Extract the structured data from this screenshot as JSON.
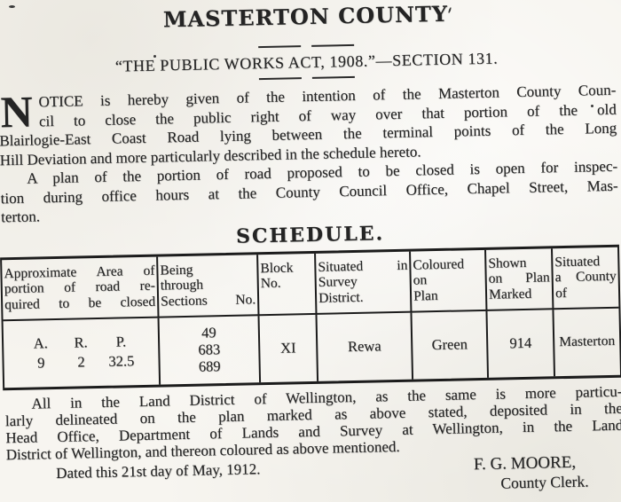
{
  "doc": {
    "title": "MASTERTON COUNTY",
    "subtitle": "“THE PUBLIC WORKS ACT, 1908.”—SECTION 131.",
    "paragraph1": {
      "dropcap": "N",
      "lines": [
        "OTICE is hereby given of the intention of the Masterton County Coun-",
        "cil to close the public right of way over that portion of the old",
        "Blairlogie-East Coast Road lying between the terminal points of the Long",
        "Hill Deviation and more particularly described in the schedule hereto."
      ]
    },
    "paragraph2": {
      "lines": [
        "A plan of the portion of road proposed to be closed is open for inspec-",
        "tion during office hours at the County Council Office, Chapel Street, Mas-",
        "terton."
      ]
    },
    "schedule_heading": "SCHEDULE.",
    "table": {
      "headers": [
        {
          "lines": [
            "Approximate Area of",
            "portion of road re-",
            "quired to be closed"
          ]
        },
        {
          "lines": [
            "Being",
            "through",
            "Sections No."
          ]
        },
        {
          "lines": [
            "Block",
            "No."
          ]
        },
        {
          "lines": [
            "Situated in",
            "Survey",
            "District."
          ]
        },
        {
          "lines": [
            "Coloured",
            "on",
            "Plan"
          ]
        },
        {
          "lines": [
            "Shown",
            "on Plan",
            "Marked"
          ]
        },
        {
          "lines": [
            "Situated",
            "a County",
            "of"
          ]
        }
      ],
      "row": {
        "area_units": [
          "A.",
          "R.",
          "P."
        ],
        "area_values": [
          "9",
          "2",
          "32.5"
        ],
        "sections": [
          "49",
          "683",
          "689"
        ],
        "block_no": "XI",
        "survey_district": "Rewa",
        "coloured_on_plan": "Green",
        "shown_on_plan": "914",
        "county": "Masterton"
      }
    },
    "closing": {
      "lines": [
        "All in the Land District of Wellington, as the same is more particu-",
        "larly delineated on the plan marked as above stated, deposited  in  the",
        "Head Office, Department of Lands and Survey at Wellington, in the Land",
        "District of Wellington, and thereon coloured as above mentioned."
      ]
    },
    "dated": "Dated this 21st day of May, 1912.",
    "signature": {
      "name": "F. G. MOORE,",
      "role": "County Clerk."
    }
  }
}
